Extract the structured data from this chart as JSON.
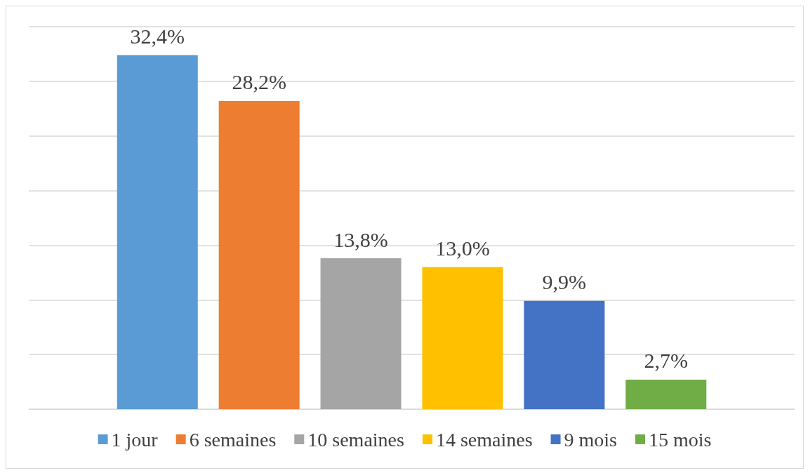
{
  "chart_data": {
    "type": "bar",
    "categories": [
      null
    ],
    "series": [
      {
        "name": "1 jour",
        "color": "#5b9bd5",
        "values": [
          32.4
        ],
        "value_labels": [
          "32,4%"
        ]
      },
      {
        "name": "6 semaines",
        "color": "#ed7d31",
        "values": [
          28.2
        ],
        "value_labels": [
          "28,2%"
        ]
      },
      {
        "name": "10 semaines",
        "color": "#a5a5a5",
        "values": [
          13.8
        ],
        "value_labels": [
          "13,8%"
        ]
      },
      {
        "name": "14 semaines",
        "color": "#ffc000",
        "values": [
          13.0
        ],
        "value_labels": [
          "13,0%"
        ]
      },
      {
        "name": "9 mois",
        "color": "#4472c4",
        "values": [
          9.9
        ],
        "value_labels": [
          "9,9%"
        ]
      },
      {
        "name": "15 mois",
        "color": "#70ad47",
        "values": [
          2.7
        ],
        "value_labels": [
          "2,7%"
        ]
      }
    ],
    "ylim": [
      0,
      35
    ],
    "yticks": [
      {
        "value": 0,
        "label": null
      },
      {
        "value": 5,
        "label": null
      },
      {
        "value": 10,
        "label": null
      },
      {
        "value": 15,
        "label": null
      },
      {
        "value": 20,
        "label": null
      },
      {
        "value": 25,
        "label": null
      },
      {
        "value": 30,
        "label": null
      },
      {
        "value": 35,
        "label": null
      }
    ],
    "grid": "y",
    "legend": "bottom"
  }
}
